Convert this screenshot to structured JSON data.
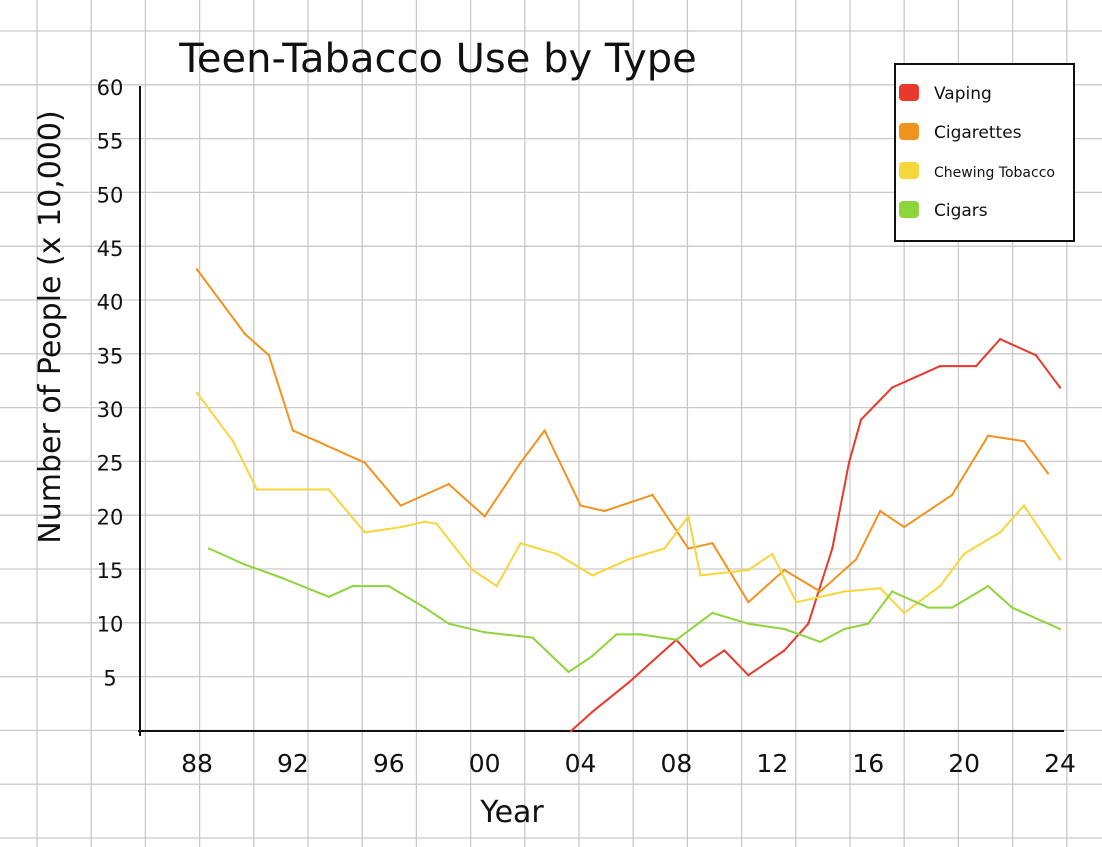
{
  "chart_data": {
    "type": "line",
    "title": "Teen-Tabacco Use by Type",
    "xlabel": "Year",
    "ylabel": "Number of People (x 10,000)",
    "xlim": [
      1987,
      2024
    ],
    "ylim": [
      0,
      60
    ],
    "x_ticks": [
      1988,
      1992,
      1996,
      2000,
      2004,
      2008,
      2012,
      2016,
      2020,
      2024
    ],
    "x_tick_labels": [
      "88",
      "92",
      "96",
      "00",
      "04",
      "08",
      "12",
      "16",
      "20",
      "24"
    ],
    "y_ticks": [
      5,
      10,
      15,
      20,
      25,
      30,
      35,
      40,
      45,
      50,
      55,
      60
    ],
    "y_tick_labels": [
      "5",
      "10",
      "15",
      "20",
      "25",
      "30",
      "35",
      "40",
      "45",
      "50",
      "55",
      "60"
    ],
    "grid": true,
    "legend": "top-right",
    "series": [
      {
        "name": "Vaping",
        "color": "#e8392c",
        "points": [
          [
            2003.6,
            0
          ],
          [
            2004.5,
            1.8
          ],
          [
            2006,
            4.5
          ],
          [
            2008,
            8.5
          ],
          [
            2009,
            6
          ],
          [
            2010,
            7.5
          ],
          [
            2011,
            5.2
          ],
          [
            2012.5,
            7.5
          ],
          [
            2013.5,
            10
          ],
          [
            2014.5,
            17
          ],
          [
            2015.2,
            25
          ],
          [
            2015.7,
            29
          ],
          [
            2017,
            32
          ],
          [
            2018,
            33
          ],
          [
            2019,
            34
          ],
          [
            2020.5,
            34
          ],
          [
            2021.5,
            36.5
          ],
          [
            2023,
            35
          ],
          [
            2024,
            32
          ]
        ]
      },
      {
        "name": "Cigarettes",
        "color": "#f0941f",
        "points": [
          [
            1988,
            43
          ],
          [
            1990,
            37
          ],
          [
            1991,
            35
          ],
          [
            1992,
            28
          ],
          [
            1993,
            27
          ],
          [
            1995,
            25
          ],
          [
            1996.5,
            21
          ],
          [
            1998.5,
            23
          ],
          [
            2000,
            20
          ],
          [
            2001.5,
            25
          ],
          [
            2002.5,
            28
          ],
          [
            2004,
            21
          ],
          [
            2005,
            20.5
          ],
          [
            2007,
            22
          ],
          [
            2008.5,
            17
          ],
          [
            2009.5,
            17.5
          ],
          [
            2011,
            12
          ],
          [
            2012.5,
            15
          ],
          [
            2014,
            13
          ],
          [
            2015.5,
            16
          ],
          [
            2016.5,
            20.5
          ],
          [
            2017.5,
            19
          ],
          [
            2019.5,
            22
          ],
          [
            2021,
            27.5
          ],
          [
            2022.5,
            27
          ],
          [
            2023.5,
            24
          ]
        ]
      },
      {
        "name": "Chewing Tobacco",
        "color": "#f7d63b",
        "points": [
          [
            1988,
            31.5
          ],
          [
            1989.5,
            27
          ],
          [
            1990.5,
            22.5
          ],
          [
            1992,
            22.5
          ],
          [
            1993.5,
            22.5
          ],
          [
            1995,
            18.5
          ],
          [
            1996.5,
            19
          ],
          [
            1997.5,
            19.5
          ],
          [
            1998,
            19.3
          ],
          [
            1999.5,
            15
          ],
          [
            2000.5,
            13.5
          ],
          [
            2001.5,
            17.5
          ],
          [
            2003,
            16.5
          ],
          [
            2004.5,
            14.5
          ],
          [
            2006,
            16
          ],
          [
            2007.5,
            17
          ],
          [
            2008.5,
            20
          ],
          [
            2009,
            14.5
          ],
          [
            2011,
            15
          ],
          [
            2012,
            16.5
          ],
          [
            2013,
            12
          ],
          [
            2015,
            13
          ],
          [
            2016.5,
            13.3
          ],
          [
            2017.5,
            11
          ],
          [
            2019,
            13.5
          ],
          [
            2020,
            16.5
          ],
          [
            2021.5,
            18.5
          ],
          [
            2022.5,
            21
          ],
          [
            2024,
            16
          ]
        ]
      },
      {
        "name": "Cigars",
        "color": "#8fd43a",
        "points": [
          [
            1988.5,
            17
          ],
          [
            1990,
            15.5
          ],
          [
            1991.5,
            14.3
          ],
          [
            1993.5,
            12.5
          ],
          [
            1994.5,
            13.5
          ],
          [
            1996,
            13.5
          ],
          [
            1997.5,
            11.5
          ],
          [
            1998.5,
            10
          ],
          [
            2000,
            9.2
          ],
          [
            2002,
            8.7
          ],
          [
            2003.5,
            5.5
          ],
          [
            2004.5,
            7
          ],
          [
            2005.5,
            9
          ],
          [
            2006.5,
            9
          ],
          [
            2008,
            8.5
          ],
          [
            2009.5,
            11
          ],
          [
            2011,
            10
          ],
          [
            2012.5,
            9.5
          ],
          [
            2014,
            8.3
          ],
          [
            2015,
            9.5
          ],
          [
            2016,
            10
          ],
          [
            2017,
            13
          ],
          [
            2018.5,
            11.5
          ],
          [
            2019.5,
            11.5
          ],
          [
            2021,
            13.5
          ],
          [
            2022,
            11.5
          ],
          [
            2024,
            9.5
          ]
        ]
      }
    ]
  }
}
